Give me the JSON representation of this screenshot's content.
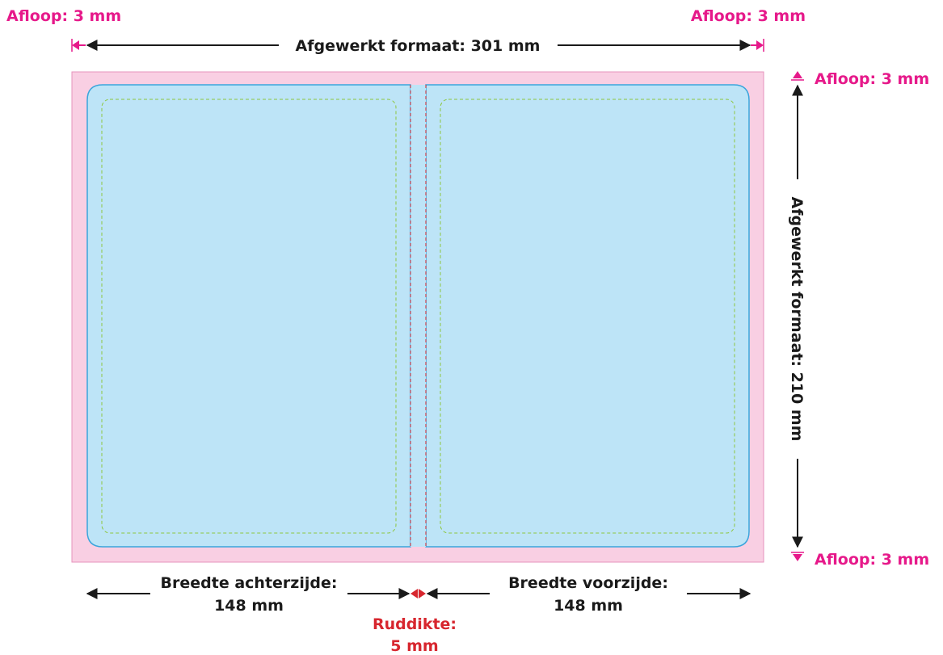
{
  "bleed": {
    "top_left": "Afloop: 3 mm",
    "top_right": "Afloop: 3 mm",
    "right_top": "Afloop: 3 mm",
    "right_bottom": "Afloop: 3 mm"
  },
  "finished_size": {
    "width_label": "Afgewerkt formaat: 301 mm",
    "height_label": "Afgewerkt formaat: 210 mm"
  },
  "back_cover": {
    "line1": "Breedte achterzijde:",
    "line2": "148 mm"
  },
  "front_cover": {
    "line1": "Breedte voorzijde:",
    "line2": "148 mm"
  },
  "spine": {
    "line1": "Ruddikte:",
    "line2": "5 mm"
  },
  "colors": {
    "bleed_area": "#f9cfe3",
    "cover_area": "#bde4f7",
    "cover_border": "#3aa5dc",
    "safe_zone": "#8dc63f",
    "spine_lines": "#d7262e",
    "accent": "#e6198a",
    "text": "#1a1a1a"
  }
}
